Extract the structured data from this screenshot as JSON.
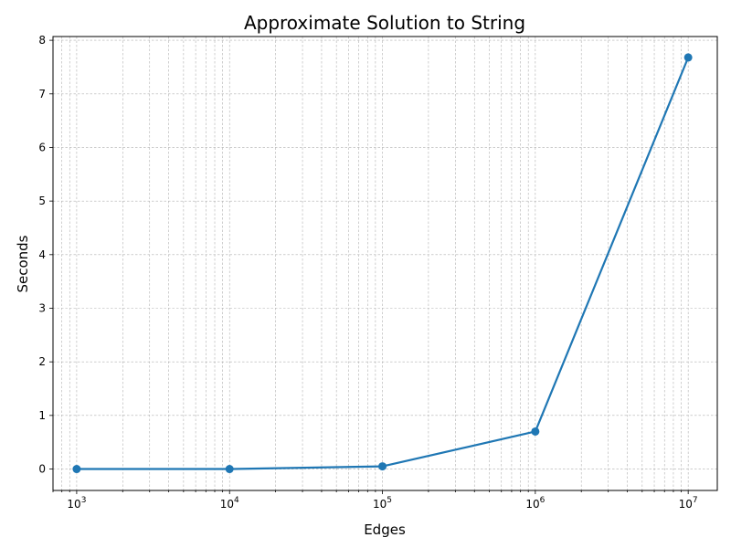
{
  "chart_data": {
    "type": "line",
    "title": "Approximate Solution to String",
    "xlabel": "Edges",
    "ylabel": "Seconds",
    "x_scale": "log",
    "x_range": [
      700,
      15500000
    ],
    "ylim": [
      -0.4,
      8.07
    ],
    "grid": true,
    "grid_minor": true,
    "series": [
      {
        "color": "#1f77b4",
        "marker": "circle",
        "x": [
          1000,
          10000,
          100000,
          1000000,
          10000000
        ],
        "y": [
          0.0,
          0.0,
          0.05,
          0.7,
          7.68
        ]
      }
    ],
    "x_ticks": [
      {
        "value": 1000,
        "base": "10",
        "exp": "3"
      },
      {
        "value": 10000,
        "base": "10",
        "exp": "4"
      },
      {
        "value": 100000,
        "base": "10",
        "exp": "5"
      },
      {
        "value": 1000000,
        "base": "10",
        "exp": "6"
      },
      {
        "value": 10000000,
        "base": "10",
        "exp": "7"
      }
    ],
    "y_ticks": [
      0,
      1,
      2,
      3,
      4,
      5,
      6,
      7,
      8
    ]
  }
}
